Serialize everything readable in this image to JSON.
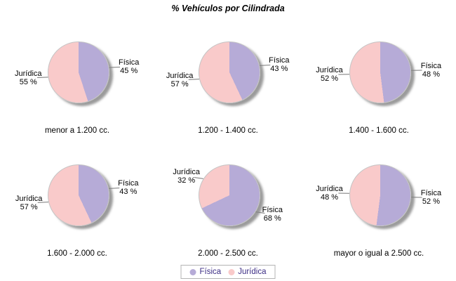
{
  "title": "% Vehículos por Cilindrada",
  "colors": {
    "fisica": "#b6abd7",
    "juridica": "#f9caca",
    "pie_border": "#c4c4c4",
    "shadow": "#828282",
    "leader_line": "#777777",
    "label_text": "#000000",
    "legend_text": "#3d2e85",
    "legend_border": "#b4b4b4",
    "background": "#ffffff"
  },
  "legend": {
    "items": [
      {
        "label": "Física",
        "color_key": "fisica"
      },
      {
        "label": "Jurídica",
        "color_key": "juridica"
      }
    ]
  },
  "chart_data": [
    {
      "type": "pie",
      "title": "menor a 1.200 cc.",
      "unit": "%",
      "slices": [
        {
          "label": "Física",
          "value": 45,
          "pct_label": "45 %"
        },
        {
          "label": "Jurídica",
          "value": 55,
          "pct_label": "55 %"
        }
      ]
    },
    {
      "type": "pie",
      "title": "1.200 - 1.400 cc.",
      "unit": "%",
      "slices": [
        {
          "label": "Física",
          "value": 43,
          "pct_label": "43 %"
        },
        {
          "label": "Jurídica",
          "value": 57,
          "pct_label": "57 %"
        }
      ]
    },
    {
      "type": "pie",
      "title": "1.400 - 1.600 cc.",
      "unit": "%",
      "slices": [
        {
          "label": "Física",
          "value": 48,
          "pct_label": "48 %"
        },
        {
          "label": "Jurídica",
          "value": 52,
          "pct_label": "52 %"
        }
      ]
    },
    {
      "type": "pie",
      "title": "1.600 - 2.000 cc.",
      "unit": "%",
      "slices": [
        {
          "label": "Física",
          "value": 43,
          "pct_label": "43 %"
        },
        {
          "label": "Jurídica",
          "value": 57,
          "pct_label": "57 %"
        }
      ]
    },
    {
      "type": "pie",
      "title": "2.000 - 2.500 cc.",
      "unit": "%",
      "slices": [
        {
          "label": "Física",
          "value": 68,
          "pct_label": "68 %"
        },
        {
          "label": "Jurídica",
          "value": 32,
          "pct_label": "32 %"
        }
      ]
    },
    {
      "type": "pie",
      "title": "mayor o igual a 2.500 cc.",
      "unit": "%",
      "slices": [
        {
          "label": "Física",
          "value": 52,
          "pct_label": "52 %"
        },
        {
          "label": "Jurídica",
          "value": 48,
          "pct_label": "48 %"
        }
      ]
    }
  ]
}
